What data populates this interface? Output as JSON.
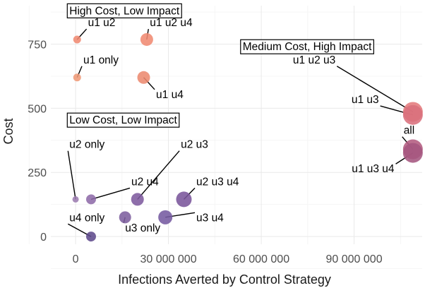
{
  "chart_data": {
    "type": "scatter",
    "title": "",
    "xlabel": "Infections Averted by Control Strategy",
    "ylabel": "Cost",
    "xlim": [
      -8000000,
      112000000
    ],
    "ylim": [
      -30000,
      900000
    ],
    "x_ticks": [
      0,
      30000000,
      60000000,
      90000000
    ],
    "x_tick_labels": [
      "0",
      "30 000 000",
      "60 000 000",
      "90 000 000"
    ],
    "y_ticks": [
      0,
      250000,
      500000,
      750000
    ],
    "y_tick_labels": [
      "0",
      "250",
      "500",
      "750"
    ],
    "grid": true,
    "points": [
      {
        "label": "u1 u2",
        "x": 500000,
        "y": 768000,
        "color": "#f08a72",
        "size": 5.5
      },
      {
        "label": "u1 u2 u4",
        "x": 23000000,
        "y": 768000,
        "color": "#f08a72",
        "size": 9
      },
      {
        "label": "u1 only",
        "x": 500000,
        "y": 620000,
        "color": "#ef9a78",
        "size": 5.5
      },
      {
        "label": "u1 u4",
        "x": 22000000,
        "y": 620000,
        "color": "#ec8a6f",
        "size": 9
      },
      {
        "label": "u1 u2 u3",
        "x": 109000000,
        "y": 486000,
        "color": "#e47a7c",
        "size": 14
      },
      {
        "label": "u1 u3",
        "x": 109000000,
        "y": 474000,
        "color": "#d9707c",
        "size": 14
      },
      {
        "label": "all",
        "x": 109000000,
        "y": 340000,
        "color": "#b35b80",
        "size": 14
      },
      {
        "label": "u1 u3 u4",
        "x": 109000000,
        "y": 326000,
        "color": "#a55680",
        "size": 14
      },
      {
        "label": "u2 only",
        "x": 0,
        "y": 145000,
        "color": "#9c7cb0",
        "size": 4.5
      },
      {
        "label": "u2 u4",
        "x": 5000000,
        "y": 145000,
        "color": "#8e6ba9",
        "size": 7
      },
      {
        "label": "u2 u3",
        "x": 20000000,
        "y": 145000,
        "color": "#7e5a9e",
        "size": 9
      },
      {
        "label": "u2 u3 u4",
        "x": 35000000,
        "y": 145000,
        "color": "#7a559b",
        "size": 11
      },
      {
        "label": "u4 only",
        "x": 5000000,
        "y": 0,
        "color": "#5e4a8c",
        "size": 7
      },
      {
        "label": "u3 only",
        "x": 16000000,
        "y": 75000,
        "color": "#7d5f9e",
        "size": 8.5
      },
      {
        "label": "u3 u4",
        "x": 29000000,
        "y": 75000,
        "color": "#755aa0",
        "size": 10
      }
    ],
    "annotations": [
      {
        "label": "u1 u2",
        "text_x": 4000000,
        "text_y": 820000,
        "anchor": "start"
      },
      {
        "label": "u1 u2 u4",
        "text_x": 24000000,
        "text_y": 820000,
        "anchor": "start"
      },
      {
        "label": "u1 only",
        "text_x": 2500000,
        "text_y": 675000,
        "anchor": "start"
      },
      {
        "label": "u1 u4",
        "text_x": 26000000,
        "text_y": 540000,
        "anchor": "start"
      },
      {
        "label": "u1 u2 u3",
        "text_x": 84000000,
        "text_y": 675000,
        "anchor": "end"
      },
      {
        "label": "u1 u3",
        "text_x": 98000000,
        "text_y": 520000,
        "anchor": "end"
      },
      {
        "label": "all",
        "text_x": 106000000,
        "text_y": 400000,
        "anchor": "start"
      },
      {
        "label": "u1 u3 u4",
        "text_x": 103000000,
        "text_y": 250000,
        "anchor": "end"
      },
      {
        "label": "u2 only",
        "text_x": -2000000,
        "text_y": 345000,
        "anchor": "start"
      },
      {
        "label": "u2 u4",
        "text_x": 18000000,
        "text_y": 200000,
        "anchor": "start"
      },
      {
        "label": "u2 u3",
        "text_x": 34000000,
        "text_y": 345000,
        "anchor": "start"
      },
      {
        "label": "u2 u3 u4",
        "text_x": 39000000,
        "text_y": 200000,
        "anchor": "start"
      },
      {
        "label": "u4 only",
        "text_x": -2000000,
        "text_y": 60000,
        "anchor": "start"
      },
      {
        "label": "u3 only",
        "text_x": 16000000,
        "text_y": 20000,
        "anchor": "start"
      },
      {
        "label": "u3 u4",
        "text_x": 39000000,
        "text_y": 60000,
        "anchor": "start"
      }
    ],
    "groups": [
      {
        "text": "High Cost, Low Impact",
        "x": -2000000,
        "y": 866000
      },
      {
        "text": "Medium Cost, High Impact",
        "x": 54000000,
        "y": 726000
      },
      {
        "text": "Low Cost, Low Impact",
        "x": -2000000,
        "y": 440000
      }
    ]
  }
}
